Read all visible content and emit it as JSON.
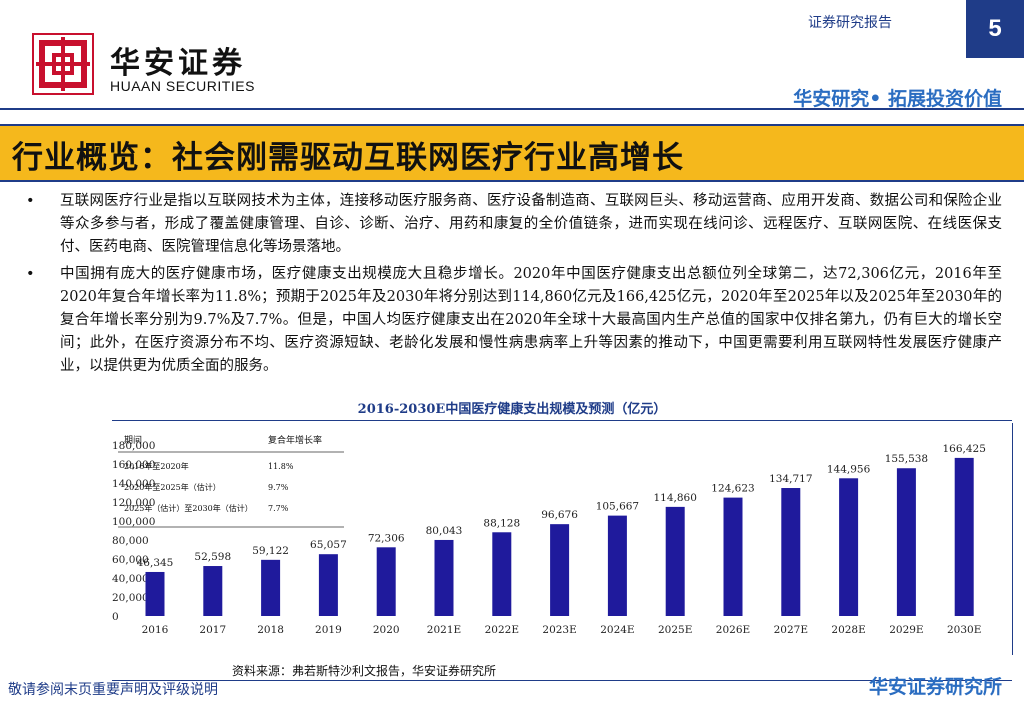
{
  "header": {
    "brand_cn": "华安证券",
    "brand_en": "HUAAN SECURITIES",
    "report_label": "证券研究报告",
    "page_number": "5",
    "slogan": "华安研究• 拓展投资价值"
  },
  "title": "行业概览：社会刚需驱动互联网医疗行业高增长",
  "bullets": [
    {
      "marker": "•",
      "text": "互联网医疗行业是指以互联网技术为主体，连接移动医疗服务商、医疗设备制造商、互联网巨头、移动运营商、应用开发商、数据公司和保险企业等众多参与者，形成了覆盖健康管理、自诊、诊断、治疗、用药和康复的全价值链条，进而实现在线问诊、远程医疗、互联网医院、在线医保支付、医药电商、医院管理信息化等场景落地。"
    },
    {
      "marker": "•",
      "text": "中国拥有庞大的医疗健康市场，医疗健康支出规模庞大且稳步增长。2020年中国医疗健康支出总额位列全球第二，达72,306亿元，2016年至2020年复合年增长率为11.8%；预期于2025年及2030年将分别达到114,860亿元及166,425亿元，2020年至2025年以及2025年至2030年的复合年增长率分别为9.7%及7.7%。但是，中国人均医疗健康支出在2020年全球十大最高国内生产总值的国家中仅排名第九，仍有巨大的增长空间；此外，在医疗资源分布不均、医疗资源短缺、老龄化发展和慢性病患病率上升等因素的推动下，中国更需要利用互联网特性发展医疗健康产业，以提供更为优质全面的服务。"
    }
  ],
  "chart_title": "2016-2030E中国医疗健康支出规模及预测（亿元）",
  "chart_data": {
    "type": "bar",
    "categories": [
      "2016",
      "2017",
      "2018",
      "2019",
      "2020",
      "2021E",
      "2022E",
      "2023E",
      "2024E",
      "2025E",
      "2026E",
      "2027E",
      "2028E",
      "2029E",
      "2030E"
    ],
    "values": [
      46345,
      52598,
      59122,
      65057,
      72306,
      80043,
      88128,
      96676,
      105667,
      114860,
      124623,
      134717,
      144956,
      155538,
      166425
    ],
    "value_labels": [
      "46,345",
      "52,598",
      "59,122",
      "65,057",
      "72,306",
      "80,043",
      "88,128",
      "96,676",
      "105,667",
      "114,860",
      "124,623",
      "134,717",
      "144,956",
      "155,538",
      "166,425"
    ],
    "yticks": [
      "0",
      "20,000",
      "40,000",
      "60,000",
      "80,000",
      "100,000",
      "120,000",
      "140,000",
      "160,000",
      "180,000"
    ],
    "ylim": [
      0,
      180000
    ],
    "bar_color": "#1f1a9c",
    "cagr_table": {
      "headers": [
        "期间",
        "复合年增长率"
      ],
      "rows": [
        [
          "2016年至2020年",
          "11.8%"
        ],
        [
          "2020年至2025年（估计）",
          "9.7%"
        ],
        [
          "2025年（估计）至2030年（估计）",
          "7.7%"
        ]
      ]
    }
  },
  "source": "资料来源：弗若斯特沙利文报告，华安证券研究所",
  "footer": {
    "note": "敬请参阅末页重要声明及评级说明",
    "brand": "华安证券研究所"
  },
  "colors": {
    "accent": "#1f3c88",
    "title_bg": "#f5b81c",
    "slogan": "#2b6dc1",
    "logo": "#c8102e"
  }
}
